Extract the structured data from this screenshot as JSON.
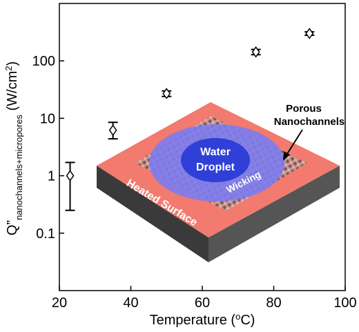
{
  "chart_data": {
    "type": "scatter",
    "x_label": [
      {
        "text": "Temperature ("
      },
      {
        "text": "o",
        "sup": true
      },
      {
        "text": "C)"
      }
    ],
    "y_label": [
      {
        "text": "Q”"
      },
      {
        "text": "nanochannels+micropores",
        "sub": true
      },
      {
        "text": " (W/cm"
      },
      {
        "text": "2",
        "sup": true
      },
      {
        "text": ")"
      }
    ],
    "x": [
      23,
      35,
      50,
      75,
      90
    ],
    "series": [
      {
        "color": "#000000",
        "values": [
          1.0,
          6.2,
          27,
          143,
          300
        ],
        "error_low": [
          0.75,
          1.8,
          3,
          15,
          20
        ],
        "error_high": [
          0.7,
          2.3,
          3,
          15,
          20
        ]
      }
    ],
    "xlim": [
      20,
      100
    ],
    "xticks": [
      20,
      40,
      60,
      80,
      100
    ],
    "ylim": [
      0.01,
      1000
    ],
    "yticks": [
      0.1,
      1,
      10,
      100
    ],
    "log_y": true,
    "annotations": [
      "Water",
      "Droplet",
      "Wicking",
      "Heated Surface",
      "Porous",
      "Nanochannels"
    ]
  }
}
